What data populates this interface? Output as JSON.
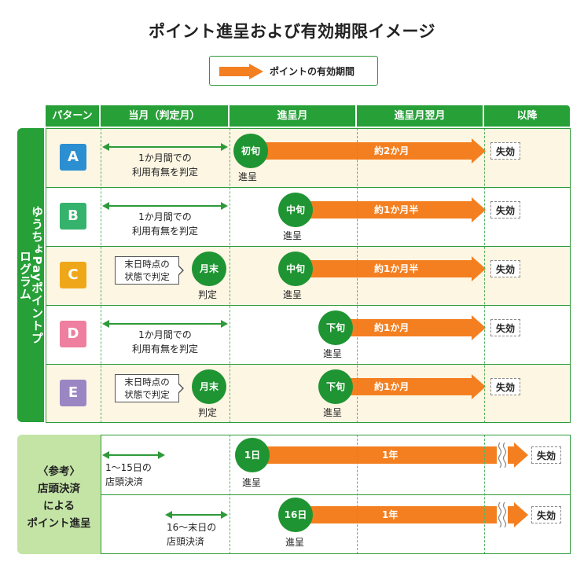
{
  "title": "ポイント進呈および有効期限イメージ",
  "legend": {
    "label": "ポイントの有効期間"
  },
  "header": {
    "pattern": "パターン",
    "current_month": "当月（判定月）",
    "grant_month": "進呈月",
    "next_month": "進呈月翌月",
    "after": "以降"
  },
  "side_label": "ゆうちょPayポイントプログラム",
  "rows": [
    {
      "pattern": "A",
      "color": "#2b8fd1",
      "judge_text": "1か月間での\n利用有無を判定",
      "circle": "初旬",
      "circle_sub": "進呈",
      "period": "約2か月",
      "expire": "失効"
    },
    {
      "pattern": "B",
      "color": "#35b36d",
      "judge_text": "1か月間での\n利用有無を判定",
      "circle": "中旬",
      "circle_sub": "進呈",
      "period": "約1か月半",
      "expire": "失効"
    },
    {
      "pattern": "C",
      "color": "#efa71a",
      "callout": "末日時点の\n状態で判定",
      "judge_circle": "月末",
      "judge_sub": "判定",
      "circle": "中旬",
      "circle_sub": "進呈",
      "period": "約1か月半",
      "expire": "失効"
    },
    {
      "pattern": "D",
      "color": "#ef7f9f",
      "judge_text": "1か月間での\n利用有無を判定",
      "circle": "下旬",
      "circle_sub": "進呈",
      "period": "約1か月",
      "expire": "失効"
    },
    {
      "pattern": "E",
      "color": "#9b86c4",
      "callout": "末日時点の\n状態で判定",
      "judge_circle": "月末",
      "judge_sub": "判定",
      "circle": "下旬",
      "circle_sub": "進呈",
      "period": "約1か月",
      "expire": "失効"
    }
  ],
  "reference": {
    "label": "〈参考〉\n店頭決済\nによる\nポイント進呈",
    "rows": [
      {
        "range": "1～15日の\n店頭決済",
        "circle": "1日",
        "circle_sub": "進呈",
        "period": "1年",
        "expire": "失効"
      },
      {
        "range": "16～末日の\n店頭決済",
        "circle": "16日",
        "circle_sub": "進呈",
        "period": "1年",
        "expire": "失効"
      }
    ]
  },
  "colors": {
    "green": "#27a038",
    "orange": "#f47f20",
    "band": "#fdf6e3",
    "ref_side": "#c4e4a6"
  }
}
